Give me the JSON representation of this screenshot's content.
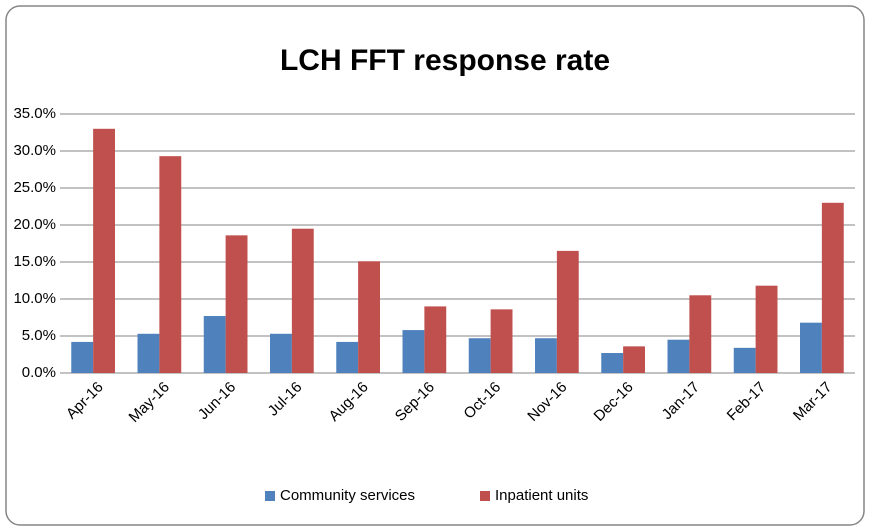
{
  "chart_data": {
    "type": "bar",
    "title": "LCH FFT response rate",
    "categories": [
      "Apr-16",
      "May-16",
      "Jun-16",
      "Jul-16",
      "Aug-16",
      "Sep-16",
      "Oct-16",
      "Nov-16",
      "Dec-16",
      "Jan-17",
      "Feb-17",
      "Mar-17"
    ],
    "series": [
      {
        "name": "Community services",
        "color": "#4f81bd",
        "values": [
          4.2,
          5.3,
          7.7,
          5.3,
          4.2,
          5.8,
          4.7,
          4.7,
          2.7,
          4.5,
          3.4,
          6.8
        ]
      },
      {
        "name": "Inpatient units",
        "color": "#c0504d",
        "values": [
          33.0,
          29.3,
          18.6,
          19.5,
          15.1,
          9.0,
          8.6,
          16.5,
          3.6,
          10.5,
          11.8,
          23.0
        ]
      }
    ],
    "ylim": [
      0,
      35
    ],
    "yticks": [
      {
        "value": 0,
        "label": "0.0%"
      },
      {
        "value": 5,
        "label": "5.0%"
      },
      {
        "value": 10,
        "label": "10.0%"
      },
      {
        "value": 15,
        "label": "15.0%"
      },
      {
        "value": 20,
        "label": "20.0%"
      },
      {
        "value": 25,
        "label": "25.0%"
      },
      {
        "value": 30,
        "label": "30.0%"
      },
      {
        "value": 35,
        "label": "35.0%"
      }
    ],
    "grid": true,
    "legend": "bottom"
  }
}
